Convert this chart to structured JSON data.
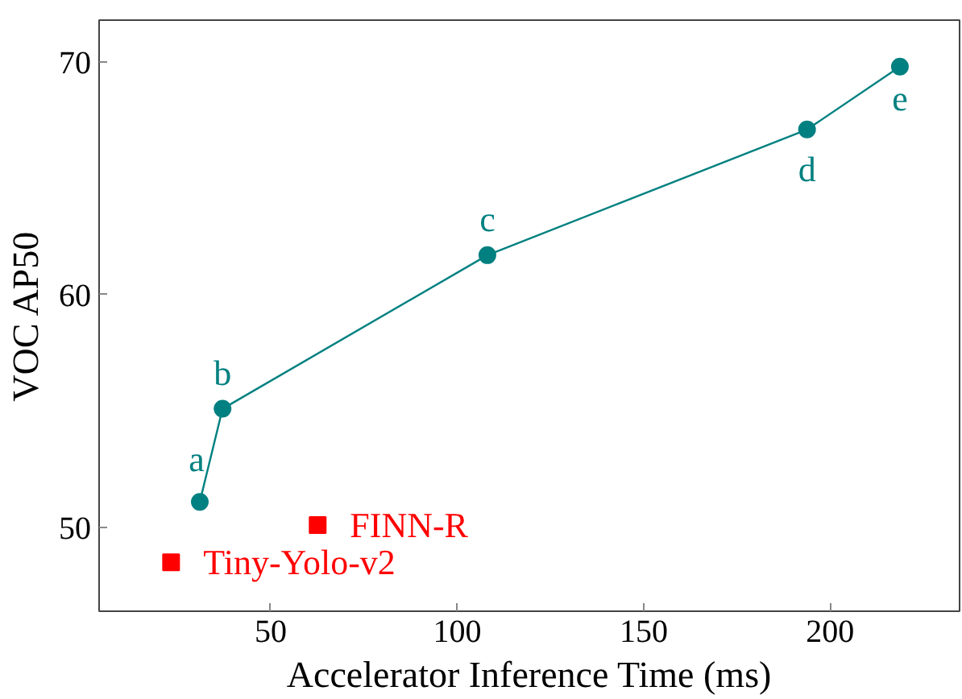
{
  "chart_data": {
    "type": "line",
    "xlabel": "Accelerator Inference Time (ms)",
    "ylabel": "VOC AP50",
    "xlim": [
      4,
      234.7
    ],
    "ylim": [
      46.4,
      71.8
    ],
    "xticks": [
      50,
      100,
      150,
      200
    ],
    "yticks": [
      50,
      60,
      70
    ],
    "grid": false,
    "marker": "circle",
    "series": [
      {
        "color": "#008080",
        "x": [
          31.0,
          37.1,
          108.1,
          193.8,
          218.7
        ],
        "values": [
          51.1,
          55.1,
          61.7,
          67.1,
          69.8
        ]
      },
      {
        "type": "scatter",
        "name": "FINN-R",
        "color": "#ff0000",
        "marker": "square",
        "x": [
          62.6
        ],
        "values": [
          50.1
        ]
      },
      {
        "type": "scatter",
        "name": "Tiny-Yolo-v2",
        "color": "#ff0000",
        "marker": "square",
        "x": [
          23.3
        ],
        "values": [
          48.5
        ]
      }
    ],
    "annotations": [
      {
        "text": "a",
        "x": 31.0,
        "y": 51.1
      },
      {
        "text": "b",
        "x": 37.1,
        "y": 55.1
      },
      {
        "text": "c",
        "x": 108.1,
        "y": 61.7
      },
      {
        "text": "d",
        "x": 193.8,
        "y": 67.1
      },
      {
        "text": "e",
        "x": 218.7,
        "y": 69.8
      }
    ]
  }
}
